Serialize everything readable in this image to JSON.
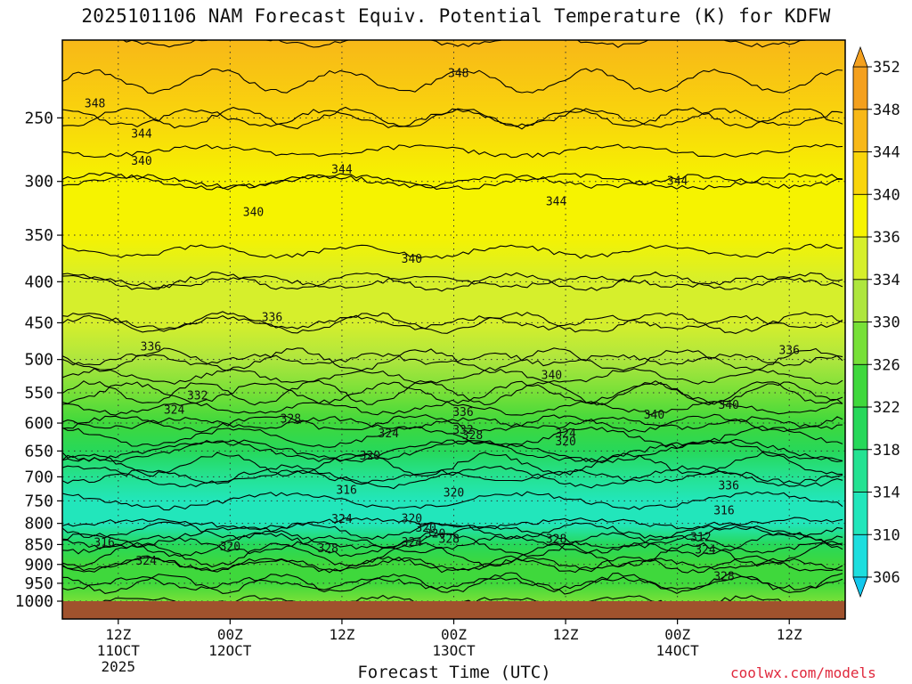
{
  "chart_data": {
    "type": "contour",
    "title": "2025101106 NAM Forecast Equiv. Potential Temperature (K) for KDFW",
    "xlabel": "Forecast Time (UTC)",
    "ylabel": "",
    "y_axis": {
      "scale": "pressure (inverted)",
      "ticks": [
        250,
        300,
        350,
        400,
        450,
        500,
        550,
        600,
        650,
        700,
        750,
        800,
        850,
        900,
        950,
        1000
      ],
      "range": [
        1000,
        200
      ]
    },
    "x_axis": {
      "range_hours": [
        0,
        84
      ],
      "ticks": [
        {
          "hour": 6,
          "lines": [
            "12Z",
            "11OCT",
            "2025"
          ]
        },
        {
          "hour": 18,
          "lines": [
            "00Z",
            "12OCT"
          ]
        },
        {
          "hour": 30,
          "lines": [
            "12Z"
          ]
        },
        {
          "hour": 42,
          "lines": [
            "00Z",
            "13OCT"
          ]
        },
        {
          "hour": 54,
          "lines": [
            "12Z"
          ]
        },
        {
          "hour": 66,
          "lines": [
            "00Z",
            "14OCT"
          ]
        },
        {
          "hour": 78,
          "lines": [
            "12Z"
          ]
        }
      ]
    },
    "grid": true,
    "colorbar": {
      "levels": [
        306,
        310,
        314,
        318,
        322,
        326,
        330,
        334,
        336,
        340,
        344,
        348,
        352
      ],
      "colors": [
        "#12c8ee",
        "#1ddede",
        "#22e6bb",
        "#25e292",
        "#27d85a",
        "#3fd83c",
        "#77e038",
        "#aee63e",
        "#d6ef2c",
        "#f6f300",
        "#f9d50c",
        "#f8b818",
        "#f4a01e"
      ]
    },
    "approximate_theta_e_profile": {
      "pressure_hpa": [
        200,
        250,
        300,
        350,
        400,
        450,
        500,
        550,
        600,
        650,
        700,
        750,
        800,
        850,
        900,
        950,
        1000
      ],
      "theta_e_k": [
        350,
        346,
        342,
        341,
        338,
        336,
        334,
        330,
        326,
        322,
        318,
        316,
        316,
        322,
        326,
        328,
        330
      ]
    },
    "contour_labels": [
      {
        "text": "348",
        "hour": 3.5,
        "p": 240
      },
      {
        "text": "348",
        "hour": 42.5,
        "p": 220
      },
      {
        "text": "344",
        "hour": 8.5,
        "p": 262
      },
      {
        "text": "344",
        "hour": 30,
        "p": 290
      },
      {
        "text": "344",
        "hour": 53,
        "p": 318
      },
      {
        "text": "344",
        "hour": 66,
        "p": 300
      },
      {
        "text": "340",
        "hour": 8.5,
        "p": 283
      },
      {
        "text": "340",
        "hour": 20.5,
        "p": 328
      },
      {
        "text": "340",
        "hour": 37.5,
        "p": 375
      },
      {
        "text": "340",
        "hour": 52.5,
        "p": 523
      },
      {
        "text": "340",
        "hour": 63.5,
        "p": 586
      },
      {
        "text": "340",
        "hour": 71.5,
        "p": 570
      },
      {
        "text": "336",
        "hour": 22.5,
        "p": 443
      },
      {
        "text": "336",
        "hour": 9.5,
        "p": 482
      },
      {
        "text": "336",
        "hour": 43,
        "p": 582
      },
      {
        "text": "336",
        "hour": 78,
        "p": 487
      },
      {
        "text": "336",
        "hour": 71.5,
        "p": 718
      },
      {
        "text": "332",
        "hour": 14.5,
        "p": 555
      },
      {
        "text": "332",
        "hour": 43,
        "p": 612
      },
      {
        "text": "328",
        "hour": 24.5,
        "p": 593
      },
      {
        "text": "328",
        "hour": 44,
        "p": 622
      },
      {
        "text": "328",
        "hour": 28.5,
        "p": 860
      },
      {
        "text": "328",
        "hour": 53,
        "p": 837
      },
      {
        "text": "328",
        "hour": 71,
        "p": 932
      },
      {
        "text": "328",
        "hour": 41.5,
        "p": 837
      },
      {
        "text": "324",
        "hour": 12,
        "p": 578
      },
      {
        "text": "324",
        "hour": 35,
        "p": 619
      },
      {
        "text": "324",
        "hour": 54,
        "p": 619
      },
      {
        "text": "324",
        "hour": 30,
        "p": 791
      },
      {
        "text": "324",
        "hour": 37.5,
        "p": 845
      },
      {
        "text": "324",
        "hour": 9,
        "p": 891
      },
      {
        "text": "324",
        "hour": 69,
        "p": 863
      },
      {
        "text": "320",
        "hour": 33,
        "p": 659
      },
      {
        "text": "320",
        "hour": 54,
        "p": 633
      },
      {
        "text": "320",
        "hour": 42,
        "p": 733
      },
      {
        "text": "320",
        "hour": 37.5,
        "p": 790
      },
      {
        "text": "320",
        "hour": 39,
        "p": 811
      },
      {
        "text": "320",
        "hour": 40,
        "p": 825
      },
      {
        "text": "320",
        "hour": 18,
        "p": 856
      },
      {
        "text": "316",
        "hour": 30.5,
        "p": 728
      },
      {
        "text": "316",
        "hour": 71,
        "p": 772
      },
      {
        "text": "316",
        "hour": 4.5,
        "p": 846
      },
      {
        "text": "312",
        "hour": 68.5,
        "p": 833
      }
    ]
  },
  "credit": "coolwx.com/models"
}
